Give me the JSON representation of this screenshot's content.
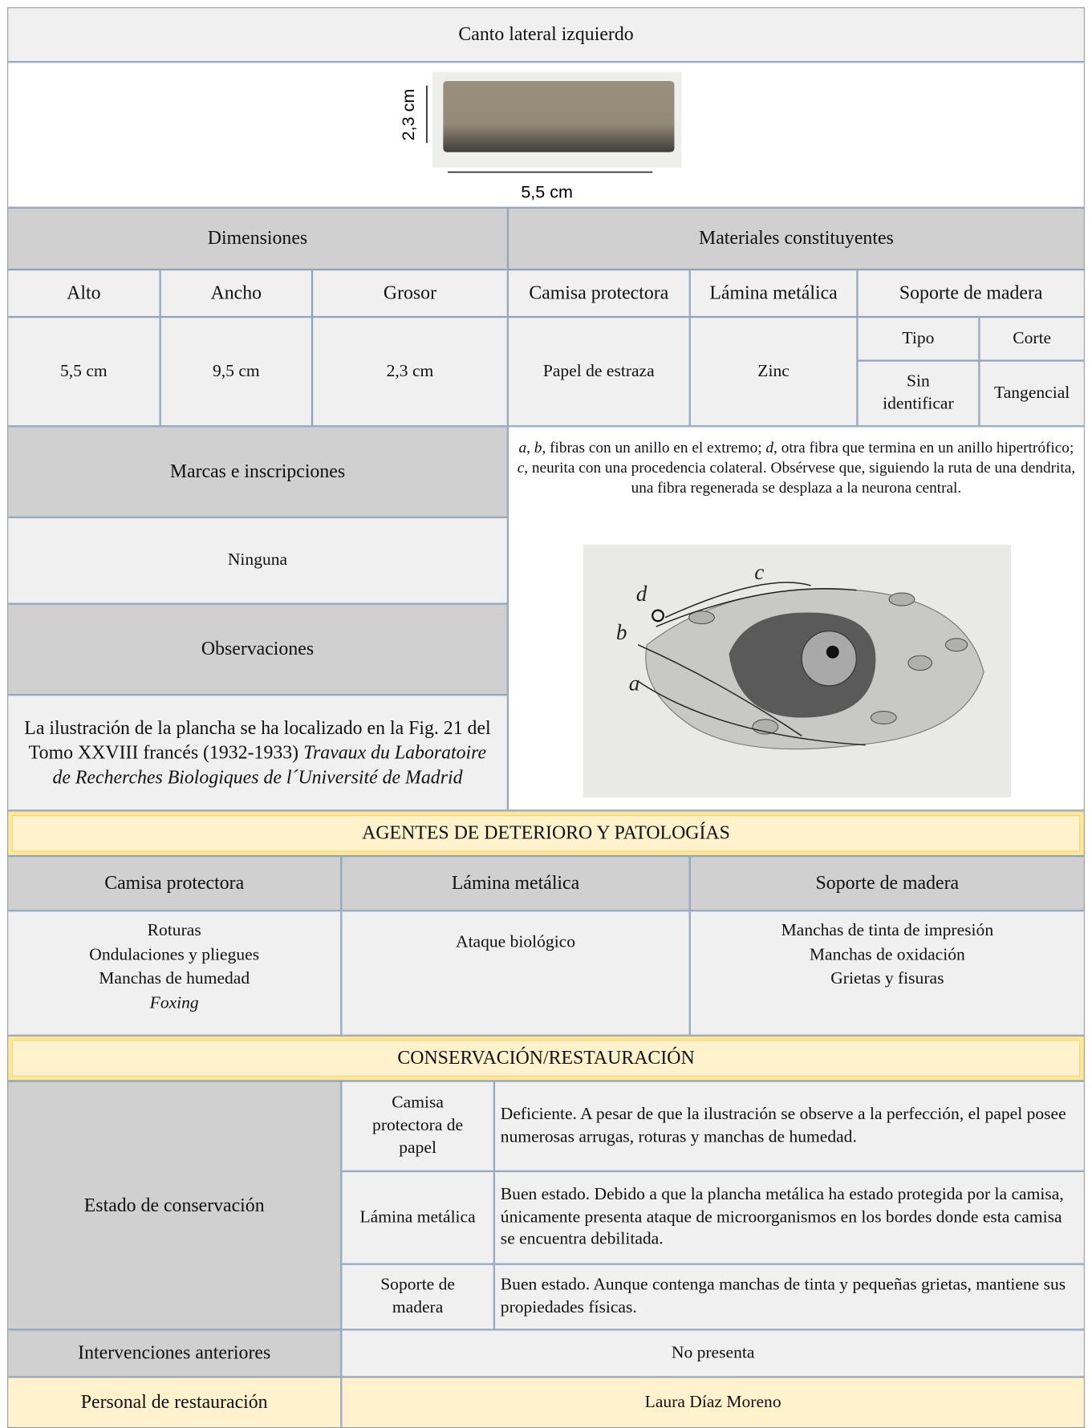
{
  "header": {
    "title": "Canto lateral izquierdo",
    "height_label": "2,3 cm",
    "width_label": "5,5 cm"
  },
  "dimensions": {
    "title": "Dimensiones",
    "alto": {
      "label": "Alto",
      "value": "5,5 cm"
    },
    "ancho": {
      "label": "Ancho",
      "value": "9,5 cm"
    },
    "grosor": {
      "label": "Grosor",
      "value": "2,3 cm"
    }
  },
  "materials": {
    "title": "Materiales constituyentes",
    "camisa": {
      "label": "Camisa protectora",
      "value": "Papel de estraza"
    },
    "lamina": {
      "label": "Lámina metálica",
      "value": "Zinc"
    },
    "soporte": {
      "label": "Soporte de madera",
      "tipo_label": "Tipo",
      "corte_label": "Corte",
      "tipo": "Sin identificar",
      "corte": "Tangencial"
    }
  },
  "marks": {
    "title": "Marcas e inscripciones",
    "value": "Ninguna"
  },
  "observations": {
    "title": "Observaciones",
    "text": [
      "La ilustración de la plancha se ha localizado en la Fig. 21 del Tomo XXVIII francés (1932-1933) ",
      "Travaux du Laboratoire de Recherches Biologiques de l´Université de Madrid"
    ]
  },
  "caption": [
    "a",
    ", ",
    "b",
    ", fibras con un anillo en el extremo; ",
    "d",
    ", otra fibra que termina en un anillo hipertrófico; ",
    "c",
    ", neurita con una procedencia colateral. Obsérvese que, siguiendo la ruta de una dendrita, una fibra regenerada se desplaza a la neurona central."
  ],
  "illustration": {
    "labels": [
      "d",
      "c",
      "b",
      "a"
    ]
  },
  "agents": {
    "title": "AGENTES DE DETERIORO Y PATOLOGÍAS",
    "columns": [
      {
        "label": "Camisa protectora",
        "items": [
          "Roturas",
          "Ondulaciones y pliegues",
          "Manchas de humedad",
          "Foxing"
        ]
      },
      {
        "label": "Lámina metálica",
        "items": [
          "Ataque biológico"
        ]
      },
      {
        "label": "Soporte de madera",
        "items": [
          "Manchas de tinta de impresión",
          "Manchas de oxidación",
          "Grietas y fisuras"
        ]
      }
    ]
  },
  "conservation": {
    "title": "CONSERVACIÓN/RESTAURACIÓN",
    "state_label": "Estado de conservación",
    "states": [
      {
        "part": "Camisa protectora de papel",
        "text": "Deficiente. A pesar de que la ilustración se observe a la perfección, el papel posee numerosas arrugas, roturas y manchas de humedad."
      },
      {
        "part": "Lámina metálica",
        "text": "Buen estado. Debido a que la plancha metálica ha estado protegida por la camisa, únicamente presenta ataque de microorganismos en los bordes donde esta camisa se encuentra debilitada."
      },
      {
        "part": "Soporte de madera",
        "text": "Buen estado. Aunque contenga manchas de tinta y pequeñas grietas, mantiene sus propiedades físicas."
      }
    ],
    "previous_label": "Intervenciones anteriores",
    "previous": "No presenta",
    "staff_label": "Personal de restauración",
    "staff": "Laura Díaz Moreno"
  }
}
